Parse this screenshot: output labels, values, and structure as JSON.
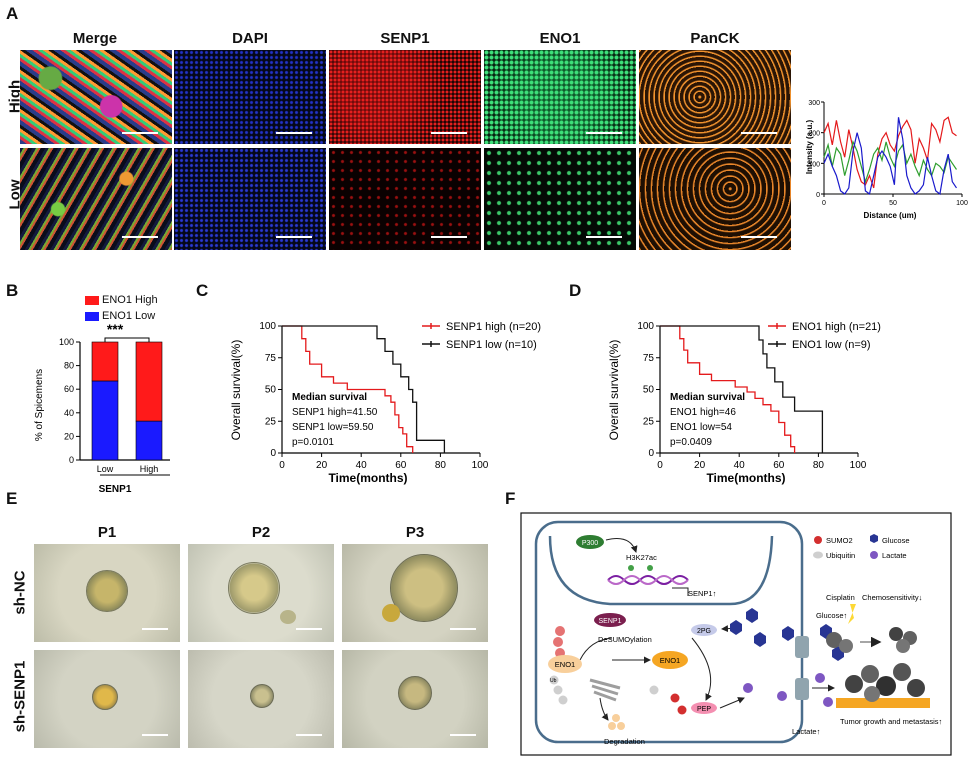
{
  "panel_labels": {
    "a": "A",
    "b": "B",
    "c": "C",
    "d": "D",
    "e": "E",
    "f": "F"
  },
  "panelA": {
    "columns": [
      "Merge",
      "DAPI",
      "SENP1",
      "ENO1",
      "PanCK"
    ],
    "rows": [
      "High",
      "Low"
    ],
    "colors": {
      "dapi": "#1a2fd6",
      "senp1": "#e01b1b",
      "eno1": "#2ecc71",
      "panck": "#f0922e"
    }
  },
  "panelB": {
    "legend": [
      "ENO1 High",
      "ENO1 Low"
    ],
    "colors": [
      "#ff1a1a",
      "#1a1aff"
    ],
    "significance": "***",
    "ylabel": "% of Spicemens",
    "xlabel": "SENP1"
  },
  "panelC": {
    "legend": [
      "SENP1 high (n=20)",
      "SENP1 low (n=10)"
    ],
    "ylabel": "Overall survival(%)",
    "xlabel": "Time(months)",
    "annotation": [
      "Median survival",
      "SENP1 high=41.50",
      "SENP1 low=59.50",
      "p=0.0101"
    ]
  },
  "panelD": {
    "legend": [
      "ENO1 high (n=21)",
      "ENO1 low (n=9)"
    ],
    "ylabel": "Overall survival(%)",
    "xlabel": "Time(months)",
    "annotation": [
      "Median survival",
      "ENO1 high=46",
      "ENO1 low=54",
      "p=0.0409"
    ]
  },
  "panelE": {
    "columns": [
      "P1",
      "P2",
      "P3"
    ],
    "rows": [
      "sh-NC",
      "sh-SENP1"
    ]
  },
  "panelF": {
    "p300": "P300",
    "h3k27ac": "H3K27ac",
    "senp1_up": "SENP1↑",
    "senp1": "SENP1",
    "desumo": "DeSUMOylation",
    "eno1": "ENO1",
    "eno1_nuc": "ENO1",
    "pg2": "2PG",
    "pep": "PEP",
    "glucose": "Glucose↑",
    "lactate": "Lactate↑",
    "degradation": "Degradation",
    "ub": "Ub",
    "su": "Su",
    "cisplatin": "Cisplatin",
    "chemo": "Chemosensitivity↓",
    "tumor": "Tumor growth and metastasis↑",
    "legend": [
      "SUMO2",
      "Glucose",
      "Ubiquitin",
      "Lactate"
    ]
  },
  "chart_data": [
    {
      "type": "line",
      "title": "",
      "xlabel": "Distance (um)",
      "ylabel": "Intensity (a.u.)",
      "xlim": [
        0,
        100
      ],
      "ylim": [
        0,
        300
      ],
      "xticks": [
        0,
        50,
        100
      ],
      "yticks": [
        0,
        100,
        200,
        300
      ],
      "series": [
        {
          "color": "#e41a1c",
          "x": [
            0,
            3,
            6,
            9,
            12,
            15,
            18,
            21,
            24,
            27,
            30,
            33,
            36,
            39,
            42,
            45,
            48,
            51,
            54,
            57,
            60,
            63,
            66,
            69,
            72,
            75,
            78,
            81,
            84,
            87,
            90,
            93,
            96
          ],
          "values": [
            200,
            230,
            160,
            240,
            170,
            120,
            210,
            150,
            80,
            40,
            30,
            60,
            20,
            130,
            180,
            200,
            160,
            140,
            190,
            220,
            240,
            210,
            100,
            180,
            150,
            110,
            230,
            210,
            170,
            240,
            250,
            200,
            190
          ]
        },
        {
          "color": "#2e9e2e",
          "x": [
            0,
            3,
            6,
            9,
            12,
            15,
            18,
            21,
            24,
            27,
            30,
            33,
            36,
            39,
            42,
            45,
            48,
            51,
            54,
            57,
            60,
            63,
            66,
            69,
            72,
            75,
            78,
            81,
            84,
            87,
            90,
            93,
            96
          ],
          "values": [
            120,
            160,
            90,
            150,
            130,
            60,
            110,
            170,
            140,
            90,
            40,
            80,
            130,
            150,
            110,
            170,
            120,
            90,
            140,
            160,
            100,
            130,
            90,
            60,
            110,
            80,
            60,
            100,
            90,
            70,
            120,
            100,
            80
          ]
        },
        {
          "color": "#1a1acc",
          "x": [
            0,
            3,
            6,
            9,
            12,
            15,
            18,
            21,
            24,
            27,
            30,
            33,
            36,
            39,
            42,
            45,
            48,
            51,
            54,
            57,
            60,
            63,
            66,
            69,
            72,
            75,
            78,
            81,
            84,
            87,
            90,
            93,
            96
          ],
          "values": [
            100,
            130,
            90,
            60,
            10,
            0,
            20,
            140,
            200,
            150,
            10,
            0,
            60,
            120,
            140,
            120,
            90,
            30,
            250,
            180,
            60,
            20,
            0,
            10,
            30,
            120,
            60,
            10,
            0,
            80,
            130,
            40,
            20
          ]
        }
      ]
    },
    {
      "type": "bar",
      "title": "",
      "categories": [
        "Low",
        "High"
      ],
      "xlabel": "SENP1",
      "ylabel": "% of Spicemens",
      "ylim": [
        0,
        100
      ],
      "yticks": [
        0,
        20,
        40,
        60,
        80,
        100
      ],
      "series": [
        {
          "name": "ENO1 Low",
          "values": [
            67,
            33
          ]
        },
        {
          "name": "ENO1 High",
          "values": [
            33,
            67
          ]
        }
      ]
    },
    {
      "type": "line",
      "title": "",
      "xlabel": "Time(months)",
      "ylabel": "Overall survival(%)",
      "xlim": [
        0,
        100
      ],
      "ylim": [
        0,
        100
      ],
      "xticks": [
        0,
        20,
        40,
        60,
        80,
        100
      ],
      "yticks": [
        0,
        25,
        50,
        75,
        100
      ],
      "series": [
        {
          "name": "SENP1 high (n=20)",
          "color": "#e41a1c",
          "x": [
            0,
            9,
            10,
            12,
            14,
            20,
            26,
            33,
            40,
            47,
            52,
            55,
            57,
            59,
            61,
            63,
            66
          ],
          "values": [
            100,
            100,
            90,
            80,
            70,
            60,
            55,
            50,
            50,
            50,
            45,
            40,
            30,
            20,
            15,
            5,
            0
          ]
        },
        {
          "name": "SENP1 low (n=10)",
          "color": "#111111",
          "x": [
            0,
            46,
            48,
            52,
            56,
            60,
            64,
            66,
            68,
            82
          ],
          "values": [
            100,
            100,
            90,
            80,
            70,
            60,
            50,
            40,
            10,
            0
          ]
        }
      ]
    },
    {
      "type": "line",
      "title": "",
      "xlabel": "Time(months)",
      "ylabel": "Overall survival(%)",
      "xlim": [
        0,
        100
      ],
      "ylim": [
        0,
        100
      ],
      "xticks": [
        0,
        20,
        40,
        60,
        80,
        100
      ],
      "yticks": [
        0,
        25,
        50,
        75,
        100
      ],
      "series": [
        {
          "name": "ENO1 high (n=21)",
          "color": "#e41a1c",
          "x": [
            0,
            8,
            10,
            12,
            14,
            20,
            26,
            32,
            38,
            44,
            48,
            52,
            56,
            60,
            63,
            66,
            68
          ],
          "values": [
            100,
            100,
            90,
            81,
            71,
            62,
            57,
            57,
            52,
            48,
            43,
            38,
            33,
            24,
            14,
            5,
            0
          ]
        },
        {
          "name": "ENO1 low (n=9)",
          "color": "#111111",
          "x": [
            0,
            46,
            50,
            52,
            54,
            58,
            62,
            68,
            76,
            82
          ],
          "values": [
            100,
            100,
            89,
            78,
            67,
            56,
            44,
            33,
            33,
            0
          ]
        }
      ]
    }
  ]
}
